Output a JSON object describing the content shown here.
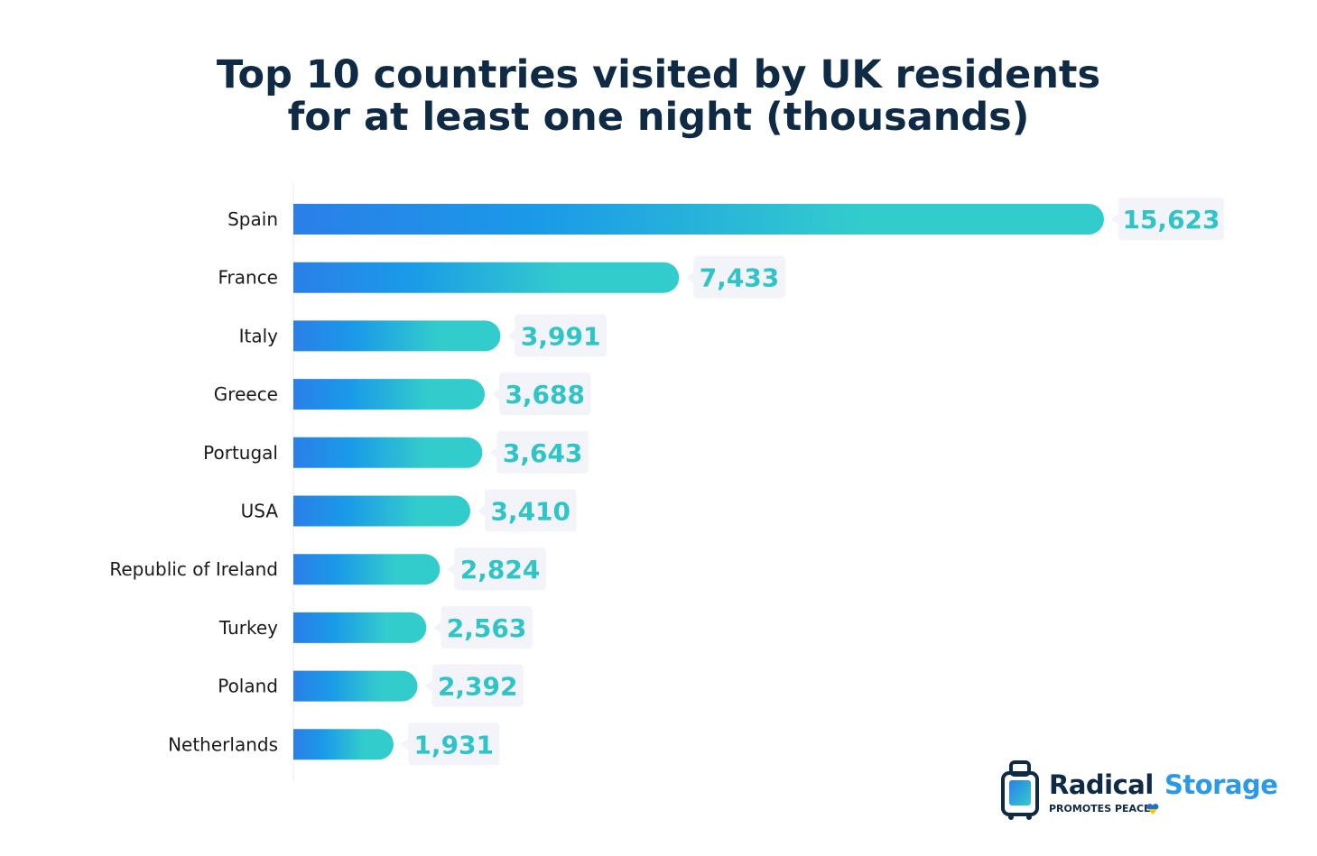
{
  "chart_data": {
    "type": "bar",
    "orientation": "horizontal",
    "title_line1": "Top 10 countries visited by UK residents",
    "title_line2": "for at least one night (thousands)",
    "categories": [
      "Spain",
      "France",
      "Italy",
      "Greece",
      "Portugal",
      "USA",
      "Republic of Ireland",
      "Turkey",
      "Poland",
      "Netherlands"
    ],
    "values": [
      15623,
      7433,
      3991,
      3688,
      3643,
      3410,
      2824,
      2563,
      2392,
      1931
    ],
    "value_labels": [
      "15,623",
      "7,433",
      "3,991",
      "3,688",
      "3,643",
      "3,410",
      "2,824",
      "2,563",
      "2,392",
      "1,931"
    ],
    "xlim": [
      0,
      15623
    ],
    "grid": false,
    "colors": {
      "gradient_start": "#2a7fe8",
      "gradient_mid": "#1a9ae8",
      "gradient_end": "#33cccc",
      "label_text": "#2ec4c8",
      "label_bg": "#f3f4f9",
      "title": "#0f2a44"
    }
  },
  "logo": {
    "brand_part1": "Radical",
    "brand_part2": "Storage",
    "tagline": "PROMOTES PEACE",
    "icon": "suitcase-icon"
  }
}
